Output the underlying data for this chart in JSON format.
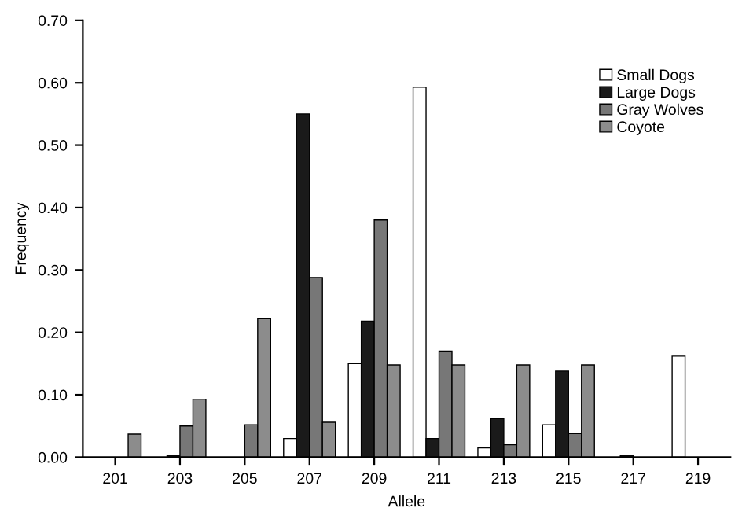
{
  "chart_data": {
    "type": "bar",
    "xlabel": "Allele",
    "ylabel": "Frequency",
    "categories": [
      "201",
      "203",
      "205",
      "207",
      "209",
      "211",
      "213",
      "215",
      "217",
      "219"
    ],
    "series": [
      {
        "name": "Small Dogs",
        "color": "#ffffff",
        "values": [
          null,
          null,
          null,
          0.03,
          0.15,
          0.593,
          0.015,
          0.052,
          null,
          0.162
        ]
      },
      {
        "name": "Large Dogs",
        "color": "#1a1a1a",
        "values": [
          null,
          0.003,
          null,
          0.55,
          0.218,
          0.03,
          0.062,
          0.138,
          0.003,
          null
        ]
      },
      {
        "name": "Gray Wolves",
        "color": "#777777",
        "values": [
          null,
          0.05,
          0.052,
          0.288,
          0.38,
          0.17,
          0.02,
          0.038,
          null,
          null
        ]
      },
      {
        "name": "Coyote",
        "color": "#8c8c8c",
        "values": [
          0.037,
          0.093,
          0.222,
          0.056,
          0.148,
          0.148,
          0.148,
          0.148,
          null,
          null
        ]
      }
    ],
    "ylim": [
      0,
      0.7
    ],
    "yticks": [
      {
        "value": 0,
        "label": "0.00"
      },
      {
        "value": 0.1,
        "label": "0.10"
      },
      {
        "value": 0.2,
        "label": "0.20"
      },
      {
        "value": 0.3,
        "label": "0.30"
      },
      {
        "value": 0.4,
        "label": "0.40"
      },
      {
        "value": 0.5,
        "label": "0.50"
      },
      {
        "value": 0.6,
        "label": "0.60"
      },
      {
        "value": 0.7,
        "label": "0.70"
      }
    ],
    "legend": "top right",
    "grid": false
  }
}
